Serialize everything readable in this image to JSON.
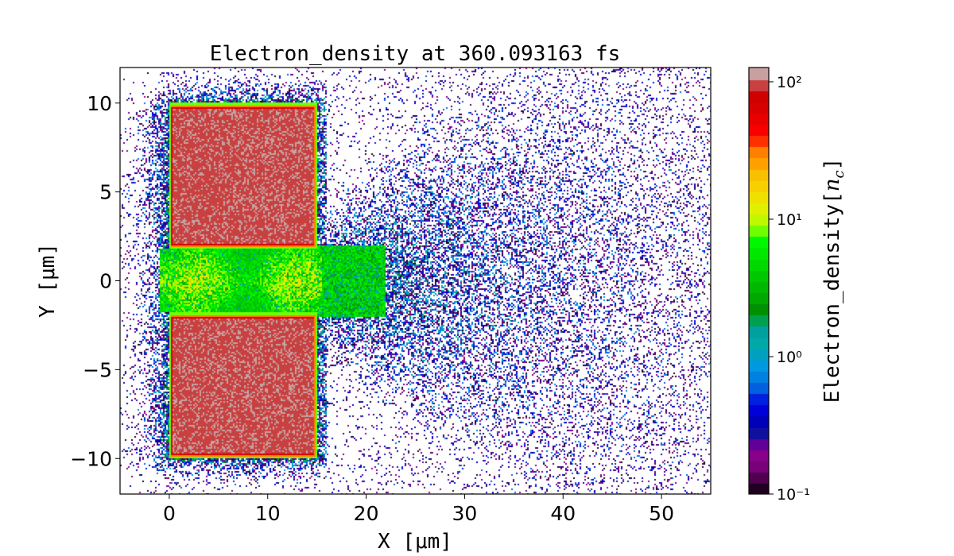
{
  "chart_data": {
    "type": "heatmap",
    "title": "Electron_density at 360.093163 fs",
    "xlabel": "X [μm]",
    "ylabel": "Y [μm]",
    "xlim": [
      -5,
      55
    ],
    "ylim": [
      -12,
      12
    ],
    "xticks": [
      0,
      10,
      20,
      30,
      40,
      50
    ],
    "xtick_labels": [
      "0",
      "10",
      "20",
      "30",
      "40",
      "50"
    ],
    "yticks": [
      -10,
      -5,
      0,
      5,
      10
    ],
    "ytick_labels": [
      "−10",
      "−5",
      "0",
      "5",
      "10"
    ],
    "colorbar": {
      "label": "Electron_density",
      "unit": "n",
      "unit_sub": "c",
      "scale": "log",
      "clim": [
        0.1,
        127
      ],
      "ticks": [
        0.1,
        1,
        10,
        100
      ],
      "tick_labels": [
        "10⁻¹",
        "10⁰",
        "10¹",
        "10²"
      ],
      "colors": [
        "#200020",
        "#500050",
        "#780078",
        "#880088",
        "#600098",
        "#1010a0",
        "#0000b8",
        "#0000d8",
        "#0020e0",
        "#0060e0",
        "#0080e0",
        "#0098e0",
        "#00a0c0",
        "#00a8a8",
        "#00a0a0",
        "#00a050",
        "#009000",
        "#00a800",
        "#00b800",
        "#00c800",
        "#00d800",
        "#00e800",
        "#00f800",
        "#70ff00",
        "#c0f800",
        "#e0f000",
        "#f0e000",
        "#f8d000",
        "#f8c000",
        "#ffa000",
        "#ff8000",
        "#ff3000",
        "#f80000",
        "#e80000",
        "#d80000",
        "#d00000",
        "#c84040",
        "#c8a0a0"
      ]
    },
    "regions": [
      {
        "name": "upper-slab",
        "x": [
          0,
          15
        ],
        "y": [
          1.8,
          10
        ],
        "density": 100
      },
      {
        "name": "lower-slab",
        "x": [
          0,
          15
        ],
        "y": [
          -10,
          -1.8
        ],
        "density": 100
      },
      {
        "name": "channel",
        "x": [
          -1,
          18
        ],
        "y": [
          -1.8,
          1.8
        ],
        "density": 8
      },
      {
        "name": "plume",
        "x": [
          15,
          55
        ],
        "y": [
          -12,
          12
        ],
        "density": 0.8
      }
    ]
  }
}
